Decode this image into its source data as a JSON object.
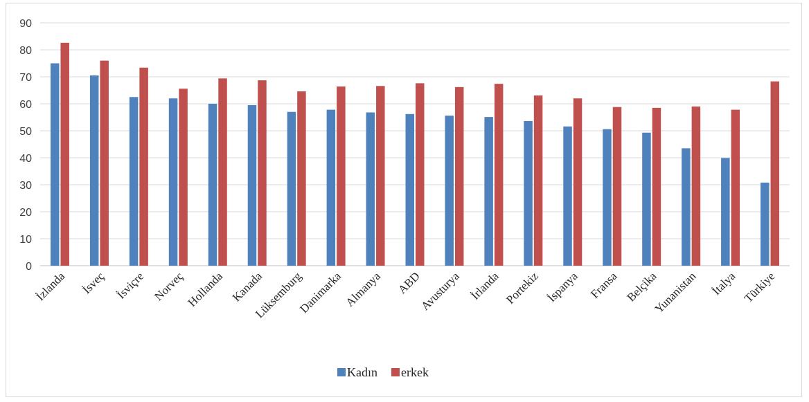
{
  "chart_data": {
    "type": "bar",
    "title": "",
    "xlabel": "",
    "ylabel": "",
    "ylim": [
      0,
      90
    ],
    "yticks": [
      "0",
      "10",
      "20",
      "30",
      "40",
      "50",
      "60",
      "70",
      "80",
      "90"
    ],
    "grid": true,
    "legend_position": "bottom",
    "categories": [
      "İzlanda",
      "İsveç",
      "İsviçre",
      "Norveç",
      "Hollanda",
      "Kanada",
      "Lüksemburg",
      "Danimarka",
      "Almanya",
      "ABD",
      "Avusturya",
      "İrlanda",
      "Portekiz",
      "İspanya",
      "Fransa",
      "Belçika",
      "Yunanistan",
      "İtalya",
      "Türkiye"
    ],
    "series": [
      {
        "name": "Kadın",
        "color": "#4f81bd",
        "values": [
          75,
          70.5,
          62.5,
          62,
          60,
          59.5,
          57,
          57.8,
          56.8,
          56.2,
          55.6,
          55.1,
          53.6,
          51.6,
          50.6,
          49.3,
          43.5,
          39.9,
          30.8
        ]
      },
      {
        "name": "erkek",
        "color": "#c0504d",
        "values": [
          82.6,
          76,
          73.4,
          65.6,
          69.4,
          68.7,
          64.6,
          66.4,
          66.6,
          67.6,
          66.2,
          67.4,
          63.1,
          62,
          58.8,
          58.5,
          59,
          57.8,
          68.3
        ]
      }
    ]
  }
}
